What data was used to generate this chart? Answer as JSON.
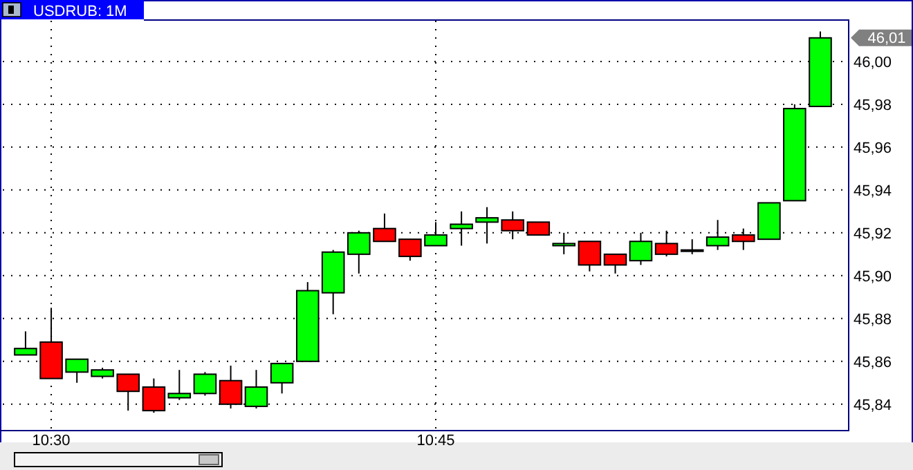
{
  "chart_data": {
    "type": "candlestick",
    "title": "USDRUB: 1M",
    "x": [
      10.4833,
      10.5,
      10.5167,
      10.5333,
      10.55,
      10.5667,
      10.5833,
      10.6,
      10.6167,
      10.6333,
      10.65,
      10.6667,
      10.6833,
      10.7,
      10.7167,
      10.7333,
      10.75,
      10.7667,
      10.7833,
      10.8,
      10.8167,
      10.8333,
      10.85,
      10.8667,
      10.8833,
      10.9,
      10.9167,
      10.9333,
      10.95,
      10.9667,
      10.9833,
      11.0
    ],
    "ohlc": [
      [
        45.863,
        45.874,
        45.863,
        45.866
      ],
      [
        45.869,
        45.885,
        45.852,
        45.852
      ],
      [
        45.855,
        45.861,
        45.85,
        45.861
      ],
      [
        45.853,
        45.857,
        45.852,
        45.856
      ],
      [
        45.854,
        45.854,
        45.837,
        45.846
      ],
      [
        45.848,
        45.852,
        45.836,
        45.837
      ],
      [
        45.843,
        45.856,
        45.842,
        45.845
      ],
      [
        45.845,
        45.855,
        45.844,
        45.854
      ],
      [
        45.851,
        45.858,
        45.838,
        45.84
      ],
      [
        45.839,
        45.856,
        45.838,
        45.848
      ],
      [
        45.85,
        45.859,
        45.845,
        45.859
      ],
      [
        45.86,
        45.897,
        45.86,
        45.893
      ],
      [
        45.892,
        45.912,
        45.882,
        45.911
      ],
      [
        45.91,
        45.921,
        45.901,
        45.92
      ],
      [
        45.922,
        45.929,
        45.916,
        45.916
      ],
      [
        45.917,
        45.917,
        45.907,
        45.909
      ],
      [
        45.914,
        45.925,
        45.914,
        45.919
      ],
      [
        45.922,
        45.93,
        45.914,
        45.924
      ],
      [
        45.925,
        45.932,
        45.915,
        45.927
      ],
      [
        45.926,
        45.93,
        45.917,
        45.921
      ],
      [
        45.925,
        45.925,
        45.919,
        45.919
      ],
      [
        45.914,
        45.92,
        45.91,
        45.915
      ],
      [
        45.916,
        45.916,
        45.902,
        45.905
      ],
      [
        45.91,
        45.91,
        45.901,
        45.905
      ],
      [
        45.907,
        45.92,
        45.905,
        45.916
      ],
      [
        45.915,
        45.921,
        45.909,
        45.91
      ],
      [
        45.912,
        45.917,
        45.91,
        45.912
      ],
      [
        45.914,
        45.926,
        45.912,
        45.918
      ],
      [
        45.919,
        45.922,
        45.912,
        45.916
      ],
      [
        45.917,
        45.934,
        45.917,
        45.934
      ],
      [
        45.935,
        45.98,
        45.935,
        45.978
      ],
      [
        45.979,
        46.014,
        45.979,
        46.011
      ]
    ],
    "xlim": [
      10.4685,
      11.018
    ],
    "xticks": [
      {
        "value": 10.5,
        "label": "10:30"
      },
      {
        "value": 10.75,
        "label": "10:45"
      }
    ],
    "ylim": [
      45.828,
      46.019
    ],
    "yticks": [
      {
        "value": 45.84,
        "label": "45,84"
      },
      {
        "value": 45.86,
        "label": "45,86"
      },
      {
        "value": 45.88,
        "label": "45,88"
      },
      {
        "value": 45.9,
        "label": "45,90"
      },
      {
        "value": 45.92,
        "label": "45,92"
      },
      {
        "value": 45.94,
        "label": "45,94"
      },
      {
        "value": 45.96,
        "label": "45,96"
      },
      {
        "value": 45.98,
        "label": "45,98"
      },
      {
        "value": 46,
        "label": "46,00"
      }
    ],
    "annotations": [
      "46,01"
    ],
    "grid": true
  }
}
